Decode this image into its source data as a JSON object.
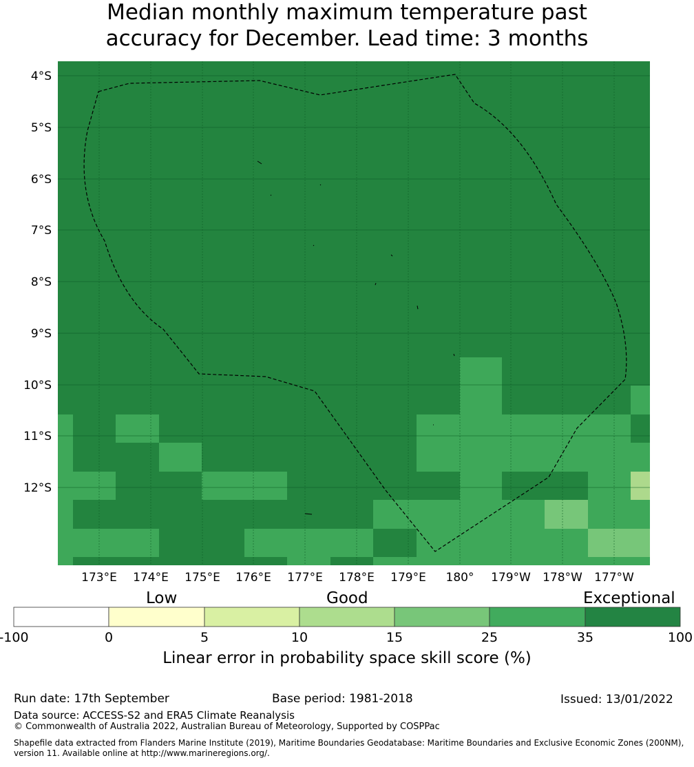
{
  "title": {
    "line1": "Median monthly maximum temperature past",
    "line2": "accuracy for December. Lead time: 3 months"
  },
  "map": {
    "lat_labels": [
      "4°S",
      "5°S",
      "6°S",
      "7°S",
      "8°S",
      "9°S",
      "10°S",
      "11°S",
      "12°S"
    ],
    "lon_labels": [
      "173°E",
      "174°E",
      "175°E",
      "176°E",
      "177°E",
      "178°E",
      "179°E",
      "180°",
      "179°W",
      "178°W",
      "177°W"
    ],
    "lat_range": [
      -13.5,
      -3.8
    ],
    "lon_range": [
      172.2,
      183.6
    ],
    "colors": {
      "c3": "#23843f",
      "c4": "#3ea859",
      "c5": "#77c679",
      "c6": "#add98c"
    },
    "skill_class_grid": [
      "333333333333333333333333333333333333333333333333333333333333333333333333333333333333333333333333333333",
      "333333333333333333333333333333333333333333333333333333333333333333333333333333333333333333333333333333",
      "333333333333333333333333333333333333333333333333333333333333333333333333333333333333333333333333333333",
      "333333333333333333333333333333333333333333333333333333333333333333333333333333333333333333333333333333",
      "333333333333333333333333333333333333333333333333333333333333333333333333333333333333333333333333333333",
      "333333333333333333333333333333333333333333333333333333333333333333333333333333333333333333333333333333",
      "333333333333333333333333333333333333333333333333333333333333333333333333333333333333333333333333333333",
      "333333333333333333333333333333333333333333333333333333333333333333333333333333333333333333333333333333",
      "333333333333333333333333333333333333333333333333333333333333333333333333333333333333333333333333333333",
      "333333333333333333333333333333333333333333333333333333333333333333333333333333333333333333333333333333"
    ],
    "skill_class_rows": [
      "33333333333334433333",
      "33333333333334433334",
      "43343333333444444443",
      "43334333333444444444",
      "44333344333333433344",
      "43333333334444555444",
      "44443333344444444556",
      "33333333333333333333"
    ]
  },
  "colorbar": {
    "categories": [
      "Low",
      "Good",
      "Exceptional"
    ],
    "ticks": [
      "-100",
      "0",
      "5",
      "10",
      "15",
      "25",
      "35",
      "100"
    ],
    "colors": [
      "#ffffff",
      "#ffffcc",
      "#d9f0a3",
      "#addd8e",
      "#78c679",
      "#41ab5d",
      "#238443"
    ],
    "title": "Linear error in probability space skill score (%)"
  },
  "footer": {
    "run_date": "Run date: 17th September",
    "base_period": "Base period: 1981-2018",
    "issued": "Issued: 13/01/2022",
    "source": "Data source: ACCESS-S2 and ERA5 Climate Reanalysis",
    "copyright": "© Commonwealth of Australia 2022, Australian Bureau of Meteorology, Supported by COSPPac",
    "shapefile": "Shapefile data extracted from Flanders Marine Institute (2019), Maritime Boundaries Geodatabase: Maritime Boundaries and Exclusive Economic Zones (200NM), version 11. Available online at http://www.marineregions.org/."
  }
}
